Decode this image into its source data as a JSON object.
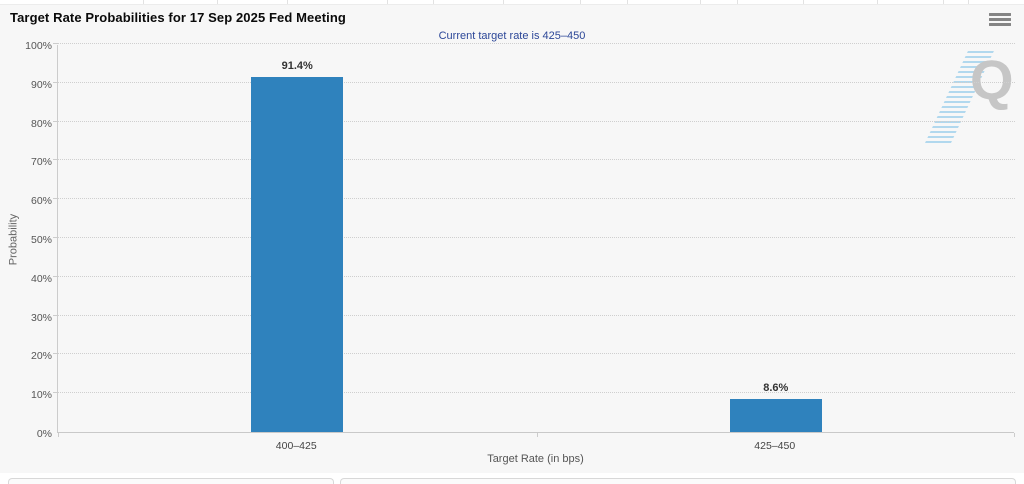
{
  "chart_data": {
    "type": "bar",
    "title": "Target Rate Probabilities for 17 Sep 2025 Fed Meeting",
    "subtitle": "Current target rate is 425–450",
    "categories": [
      "400–425",
      "425–450"
    ],
    "values": [
      91.4,
      8.6
    ],
    "data_labels": [
      "91.4%",
      "8.6%"
    ],
    "xlabel": "Target Rate (in bps)",
    "ylabel": "Probability",
    "ylim": [
      0,
      100
    ],
    "yticks": [
      "0%",
      "10%",
      "20%",
      "30%",
      "40%",
      "50%",
      "60%",
      "70%",
      "80%",
      "90%",
      "100%"
    ],
    "grid": "horizontal-dotted",
    "legend": "none",
    "bar_color": "#2f82bd"
  },
  "colors": {
    "bar": "#2f82bd",
    "subtitle_text": "#2c4798",
    "title_text": "#0a0a0a",
    "axis_text": "#555555",
    "watermark_letter": "#c6c6c6",
    "watermark_stripes": "#89c7e9",
    "panel_background": "#f7f7f7"
  },
  "icons": {
    "context_menu": "hamburger-icon"
  },
  "watermark": {
    "letter": "Q"
  }
}
